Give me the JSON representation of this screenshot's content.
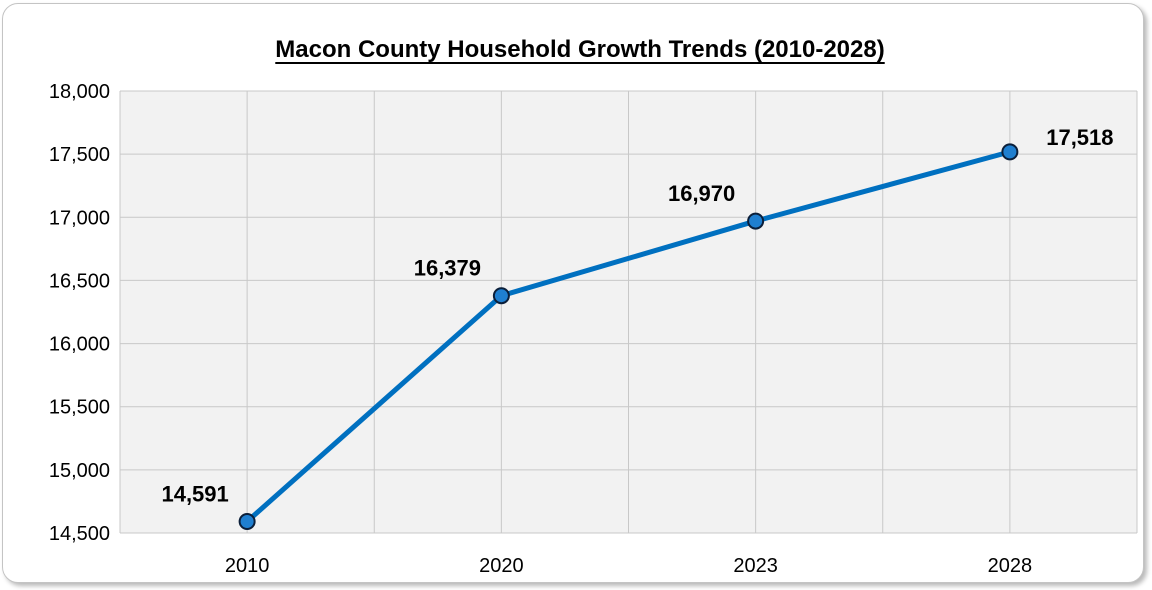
{
  "chart_data": {
    "type": "line",
    "title": "Macon County Household Growth Trends (2010-2028)",
    "xlabel": "",
    "ylabel": "",
    "categories": [
      "2010",
      "2020",
      "2023",
      "2028"
    ],
    "series": [
      {
        "values": [
          14591,
          16379,
          16970,
          17518
        ],
        "labels": [
          "14,591",
          "16,379",
          "16,970",
          "17,518"
        ]
      }
    ],
    "ylim": [
      14500,
      18000
    ],
    "y_ticks": [
      "14,500",
      "15,000",
      "15,500",
      "16,000",
      "16,500",
      "17,000",
      "17,500",
      "18,000"
    ],
    "grid": true,
    "legend": "none",
    "colors": {
      "line": "#0070C0",
      "marker_fill": "#1F7FD0",
      "marker_stroke": "#0B1F3A",
      "plot_bg": "#F2F2F2",
      "grid": "#C8C8C8"
    }
  }
}
